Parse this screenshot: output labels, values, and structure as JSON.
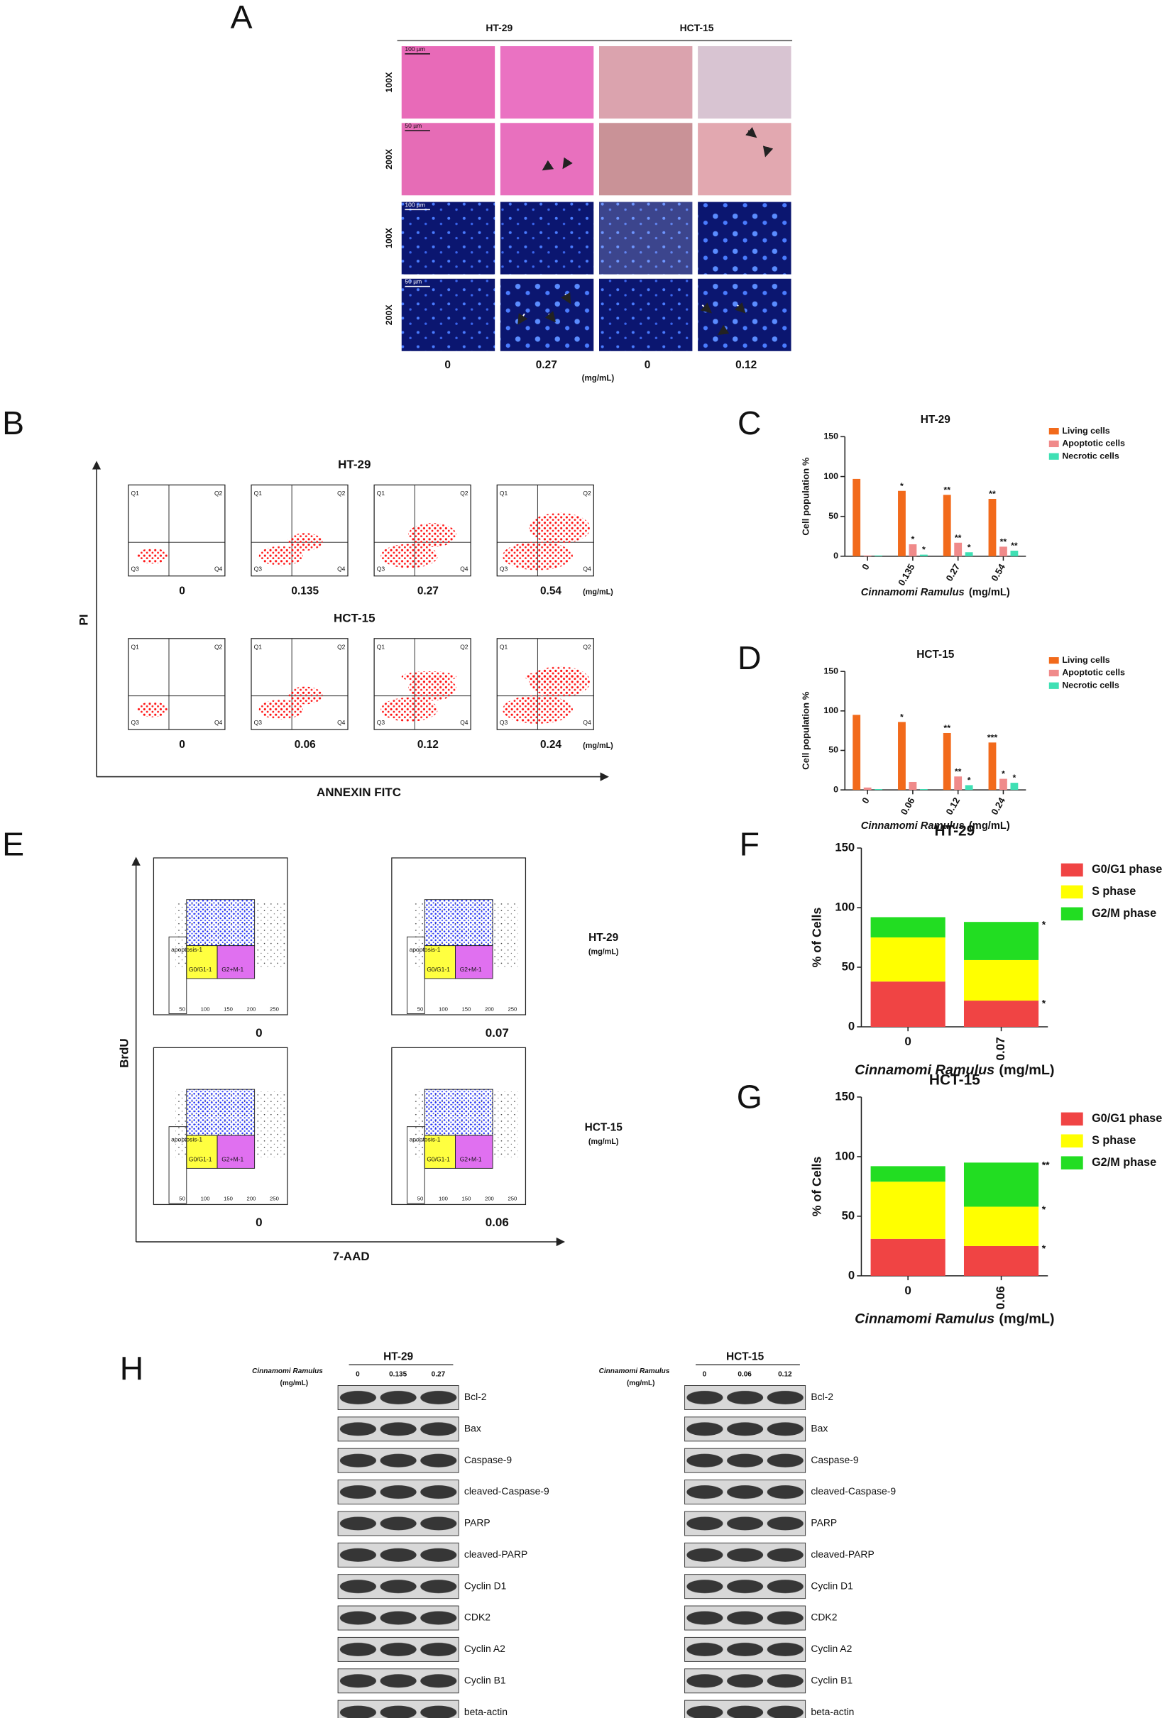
{
  "panel_labels": [
    "A",
    "B",
    "C",
    "D",
    "E",
    "F",
    "G",
    "H"
  ],
  "panel_a": {
    "lines": [
      "HT-29",
      "HCT-15"
    ],
    "rows": [
      "100X",
      "200X",
      "100X",
      "200X"
    ],
    "scale_bars": [
      "100 µm",
      "50 µm",
      "100 µm",
      "50 µm"
    ],
    "doses": [
      "0",
      "0.27",
      "0",
      "0.12"
    ],
    "unit": "(mg/mL)"
  },
  "panel_b": {
    "y_label": "PI",
    "x_label": "ANNEXIN FITC",
    "quadrants": [
      "Q1",
      "Q2",
      "Q3",
      "Q4"
    ],
    "groups": [
      {
        "name": "HT-29",
        "doses": [
          "0",
          "0.135",
          "0.27",
          "0.54"
        ]
      },
      {
        "name": "HCT-15",
        "doses": [
          "0",
          "0.06",
          "0.12",
          "0.24"
        ]
      }
    ],
    "unit": "(mg/mL)"
  },
  "panel_e": {
    "y_label": "BrdU",
    "x_label": "7-AAD",
    "gates": [
      "apoptosis-1",
      "G0/G1-1",
      "G2+M-1"
    ],
    "ticks": [
      "50",
      "100",
      "150",
      "200",
      "250"
    ],
    "groups": [
      {
        "name": "HT-29",
        "doses": [
          "0",
          "0.07"
        ]
      },
      {
        "name": "HCT-15",
        "doses": [
          "0",
          "0.06"
        ]
      }
    ],
    "unit": "(mg/mL)"
  },
  "panel_h": {
    "x_label": "Cinnamomi Ramulus",
    "unit": "(mg/mL)",
    "blots": [
      {
        "name": "HT-29",
        "doses": [
          "0",
          "0.135",
          "0.27"
        ],
        "proteins": [
          "Bcl-2",
          "Bax",
          "Caspase-9",
          "cleaved-Caspase-9",
          "PARP",
          "cleaved-PARP",
          "Cyclin D1",
          "CDK2",
          "Cyclin A2",
          "Cyclin B1",
          "beta-actin"
        ]
      },
      {
        "name": "HCT-15",
        "doses": [
          "0",
          "0.06",
          "0.12"
        ],
        "proteins": [
          "Bcl-2",
          "Bax",
          "Caspase-9",
          "cleaved-Caspase-9",
          "PARP",
          "cleaved-PARP",
          "Cyclin D1",
          "CDK2",
          "Cyclin A2",
          "Cyclin B1",
          "beta-actin"
        ]
      }
    ]
  },
  "chart_data": [
    {
      "type": "bar",
      "title": "HT-29",
      "y_label": "Cell population %",
      "x_label": "Cinnamomi Ramulus",
      "x_unit": "(mg/mL)",
      "categories": [
        "0",
        "0.135",
        "0.27",
        "0.54"
      ],
      "ylim": [
        0,
        150
      ],
      "yticks": [
        0,
        50,
        100,
        150
      ],
      "series": [
        {
          "name": "Living cells",
          "color": "#f26a1b",
          "values": [
            97,
            82,
            77,
            72
          ],
          "significance": [
            null,
            "*",
            "**",
            "**"
          ]
        },
        {
          "name": "Apoptotic cells",
          "color": "#f08a8a",
          "values": [
            1,
            15,
            17,
            12
          ],
          "significance": [
            null,
            "*",
            "**",
            "**"
          ]
        },
        {
          "name": "Necrotic cells",
          "color": "#3fe0b4",
          "values": [
            1,
            2,
            5,
            7
          ],
          "significance": [
            null,
            "*",
            "*",
            "**"
          ]
        }
      ]
    },
    {
      "type": "bar",
      "title": "HCT-15",
      "y_label": "Cell population %",
      "x_label": "Cinnamomi Ramulus",
      "x_unit": "(mg/mL)",
      "categories": [
        "0",
        "0.06",
        "0.12",
        "0.24"
      ],
      "ylim": [
        0,
        150
      ],
      "yticks": [
        0,
        50,
        100,
        150
      ],
      "series": [
        {
          "name": "Living cells",
          "color": "#f26a1b",
          "values": [
            95,
            86,
            72,
            60
          ],
          "significance": [
            null,
            "*",
            "**",
            "***"
          ]
        },
        {
          "name": "Apoptotic cells",
          "color": "#f08a8a",
          "values": [
            3,
            10,
            17,
            14
          ],
          "significance": [
            null,
            null,
            "**",
            "*"
          ]
        },
        {
          "name": "Necrotic cells",
          "color": "#3fe0b4",
          "values": [
            1,
            1,
            6,
            9
          ],
          "significance": [
            null,
            null,
            "*",
            "*"
          ]
        }
      ]
    },
    {
      "type": "stacked_bar",
      "title": "HT-29",
      "y_label": "% of Cells",
      "x_label": "Cinnamomi Ramulus",
      "x_unit": "(mg/mL)",
      "categories": [
        "0",
        "0.07"
      ],
      "ylim": [
        0,
        150
      ],
      "yticks": [
        0,
        50,
        100,
        150
      ],
      "series": [
        {
          "name": "G0/G1 phase",
          "color": "#f04444",
          "values": [
            38,
            22
          ],
          "significance": [
            null,
            "*"
          ]
        },
        {
          "name": "S phase",
          "color": "#ffff00",
          "values": [
            37,
            34
          ],
          "significance": [
            null,
            null
          ]
        },
        {
          "name": "G2/M phase",
          "color": "#22dd22",
          "values": [
            17,
            32
          ],
          "significance": [
            null,
            "*"
          ]
        }
      ]
    },
    {
      "type": "stacked_bar",
      "title": "HCT-15",
      "y_label": "% of Cells",
      "x_label": "Cinnamomi Ramulus",
      "x_unit": "(mg/mL)",
      "categories": [
        "0",
        "0.06"
      ],
      "ylim": [
        0,
        150
      ],
      "yticks": [
        0,
        50,
        100,
        150
      ],
      "series": [
        {
          "name": "G0/G1 phase",
          "color": "#f04444",
          "values": [
            31,
            25
          ],
          "significance": [
            null,
            "*"
          ]
        },
        {
          "name": "S phase",
          "color": "#ffff00",
          "values": [
            48,
            33
          ],
          "significance": [
            null,
            "*"
          ]
        },
        {
          "name": "G2/M phase",
          "color": "#22dd22",
          "values": [
            13,
            37
          ],
          "significance": [
            null,
            "**"
          ]
        }
      ]
    }
  ]
}
